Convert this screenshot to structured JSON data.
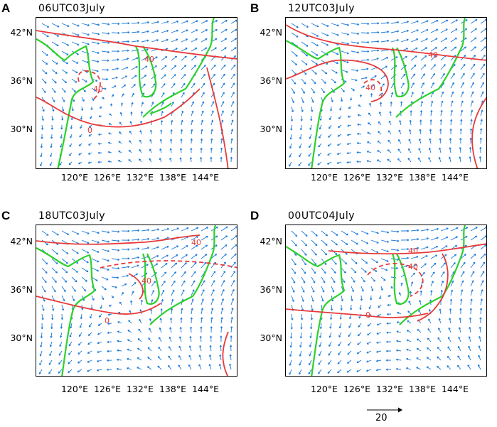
{
  "panels": [
    {
      "letter": "A",
      "title": "06UTC03July",
      "contours": [
        "40",
        "0",
        "40"
      ]
    },
    {
      "letter": "B",
      "title": "12UTC03July",
      "contours": [
        "40",
        "0",
        "40"
      ]
    },
    {
      "letter": "C",
      "title": "18UTC03July",
      "contours": [
        "40",
        "0",
        "40"
      ]
    },
    {
      "letter": "D",
      "title": "00UTC04July",
      "contours": [
        "40",
        "0",
        "40"
      ]
    }
  ],
  "lat_labels": [
    "42°N",
    "36°N",
    "30°N"
  ],
  "lon_labels": [
    "120°E",
    "126°E",
    "132°E",
    "138°E",
    "144°E"
  ],
  "scale": {
    "label": "20"
  },
  "colors": {
    "wind_vectors": "#1a7ad8",
    "contours": "#e8393a",
    "coastline": "#2bd12b"
  }
}
